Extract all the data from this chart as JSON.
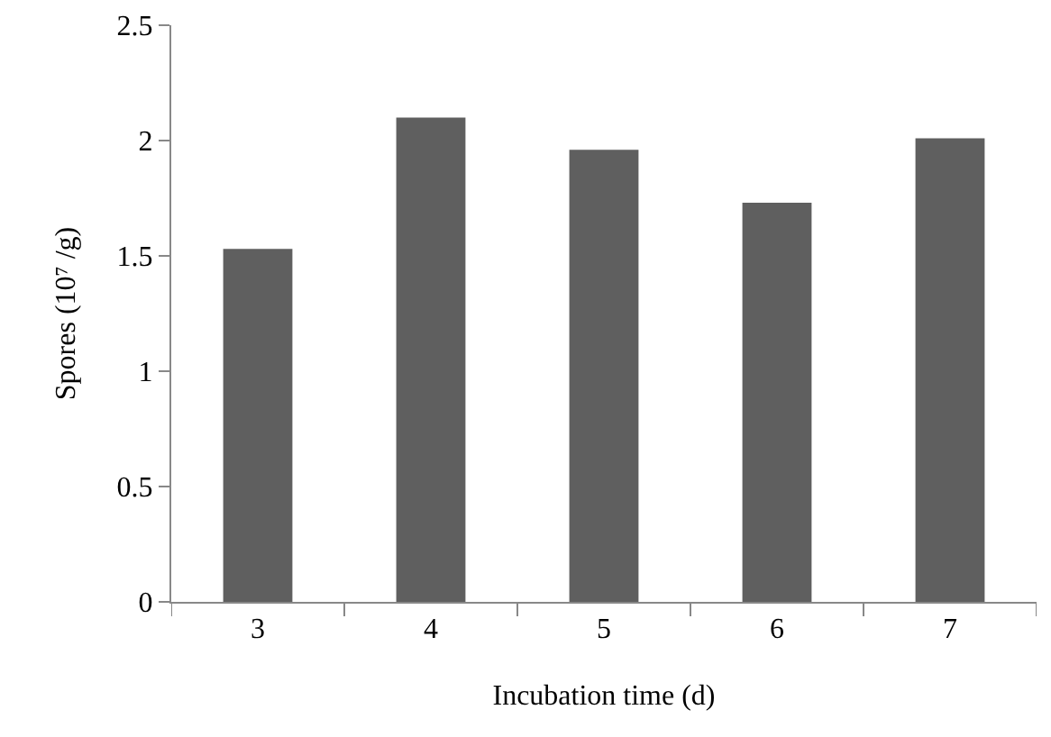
{
  "chart_data": {
    "type": "bar",
    "xlabel": "Incubation time (d)",
    "ylabel": "Spores (10⁷ /g)",
    "categories": [
      "3",
      "4",
      "5",
      "6",
      "7"
    ],
    "values": [
      1.53,
      2.1,
      1.96,
      1.73,
      2.01
    ],
    "color": "#5f5f5f",
    "ylim": [
      0,
      2.5
    ],
    "yticks": [
      0,
      0.5,
      1,
      1.5,
      2,
      2.5
    ],
    "grid": false,
    "legend": false
  }
}
